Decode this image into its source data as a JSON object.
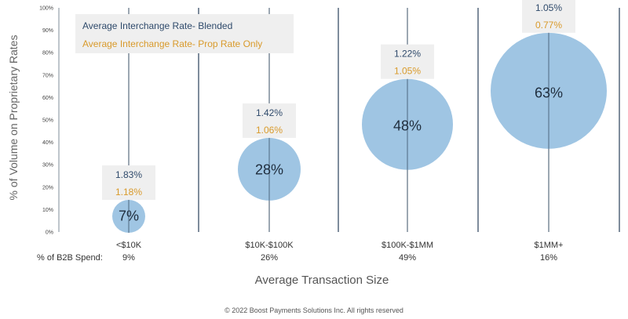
{
  "chart_data": {
    "type": "scatter",
    "ylabel": "% of Volume on Proprietary Rates",
    "xlabel": "Average Transaction Size",
    "yticks": [
      "0%",
      "10%",
      "20%",
      "30%",
      "40%",
      "50%",
      "60%",
      "70%",
      "80%",
      "90%",
      "100%"
    ],
    "ylim": [
      0,
      100
    ],
    "spend_label": "% of B2B Spend:",
    "categories": [
      "<$10K",
      "$10K-$100K",
      "$100K-$1MM",
      "$1MM+"
    ],
    "b2b_spend": [
      "9%",
      "26%",
      "49%",
      "16%"
    ],
    "series": [
      {
        "name": "% of Volume on Proprietary Rates",
        "values": [
          7,
          28,
          48,
          63
        ],
        "labels": [
          "7%",
          "28%",
          "48%",
          "63%"
        ]
      },
      {
        "name": "Average Interchange Rate- Blended",
        "values": [
          1.83,
          1.42,
          1.22,
          1.05
        ],
        "labels": [
          "1.83%",
          "1.42%",
          "1.22%",
          "1.05%"
        ]
      },
      {
        "name": "Average Interchange Rate- Prop Rate Only",
        "values": [
          1.18,
          1.06,
          1.05,
          0.77
        ],
        "labels": [
          "1.18%",
          "1.06%",
          "1.05%",
          "0.77%"
        ]
      }
    ],
    "legend": [
      "Average Interchange Rate- Blended",
      "Average Interchange Rate- Prop Rate Only"
    ],
    "legend_position": "top-left",
    "colors": {
      "bubble": "#9fc5e3",
      "blended": "#2f4a6b",
      "prop": "#d99a2b",
      "box": "#efefef",
      "divider": "#3a4f66"
    },
    "footer": "© 2022 Boost Payments Solutions Inc. All rights reserved"
  }
}
